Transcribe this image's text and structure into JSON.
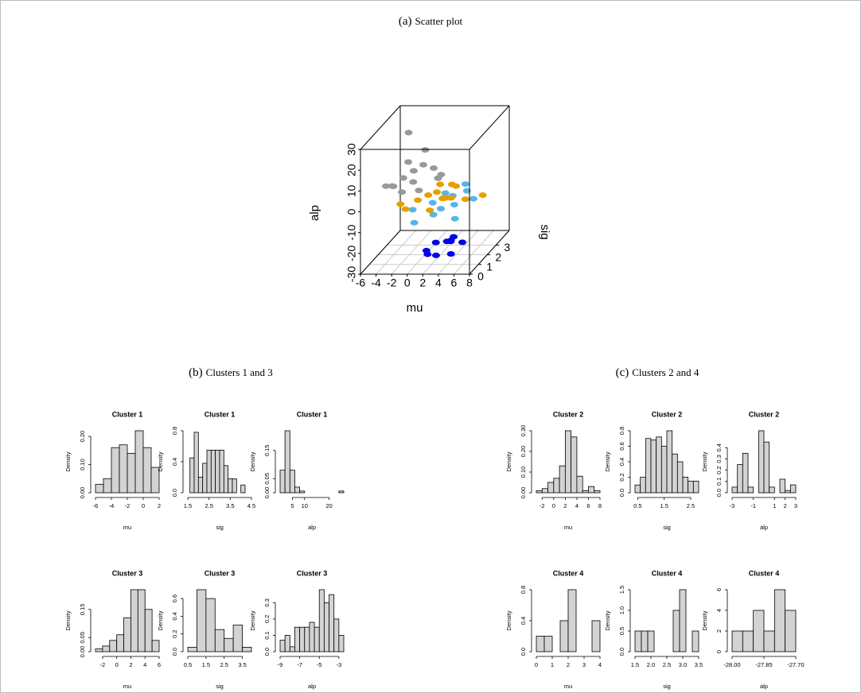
{
  "captions": [
    {
      "label": "(a)",
      "text": "Scatter plot"
    },
    {
      "label": "(b)",
      "text": "Clusters 1 and 3"
    },
    {
      "label": "(c)",
      "text": "Clusters 2 and 4"
    }
  ],
  "chart_data": [
    {
      "type": "scatter3d",
      "xlabel": "mu",
      "ylabel": "sig",
      "zlabel": "alp",
      "xlim": [
        -6,
        8
      ],
      "ylim": [
        0,
        4.5
      ],
      "zlim": [
        -30,
        30
      ],
      "xticks": [
        -6,
        -4,
        -2,
        0,
        2,
        4,
        6,
        8
      ],
      "yticks": [
        0,
        1,
        2,
        3
      ],
      "zticks": [
        -30,
        -20,
        -10,
        0,
        10,
        20,
        30
      ],
      "grid": true,
      "series": [
        {
          "color": "#999999",
          "x": [
            -5,
            -4,
            -3,
            -2,
            -1,
            0,
            -3.5,
            -2.5,
            -1.5,
            1,
            -4.5,
            0.5,
            -2,
            -1,
            -3
          ],
          "y": [
            2,
            1.8,
            2.2,
            2.5,
            2.7,
            3,
            3.2,
            1.6,
            2,
            2.6,
            2.4,
            3.4,
            3.8,
            2.2,
            2.8
          ],
          "z": [
            3,
            4,
            6,
            8,
            10,
            7,
            9,
            2,
            5,
            4,
            1,
            2,
            12,
            0,
            25
          ]
        },
        {
          "color": "#56b4e9",
          "x": [
            -1,
            1,
            2,
            3,
            4,
            5,
            3.5,
            0,
            2.5,
            6,
            1.5,
            4.5
          ],
          "y": [
            1.5,
            2,
            1.2,
            2.5,
            1.8,
            1,
            3.5,
            0.8,
            1.6,
            2.2,
            3,
            2.8
          ],
          "z": [
            -6,
            -5,
            -7,
            -4,
            -5,
            -8,
            -3,
            -9,
            -6,
            -4,
            -5,
            -3
          ]
        },
        {
          "color": "#e69f00",
          "x": [
            -2,
            0,
            1,
            2,
            3,
            2.5,
            3.5,
            4,
            2,
            1.5,
            3,
            6,
            8,
            -1,
            4.5,
            2.8
          ],
          "y": [
            1,
            1.2,
            1.5,
            1.6,
            1.4,
            1.8,
            1.2,
            2,
            0.8,
            2.4,
            1.7,
            1.3,
            1.5,
            0.7,
            1,
            2.6
          ],
          "z": [
            -1,
            0,
            1,
            2,
            0,
            -2,
            1,
            3,
            -3,
            2,
            -1,
            0,
            1,
            -2,
            2,
            1
          ]
        },
        {
          "color": "#0000ee",
          "x": [
            0.2,
            0.8,
            1.8,
            2.2,
            2.3,
            3.8,
            2.1,
            0.5,
            2,
            3.9
          ],
          "y": [
            2,
            1.6,
            2.9,
            3,
            2.9,
            1.6,
            3.4,
            2.8,
            1.5,
            2.8
          ],
          "z": [
            -28,
            -27.9,
            -27.8,
            -27.75,
            -27.8,
            -27.72,
            -27.9,
            -27.85,
            -27.95,
            -27.75
          ]
        }
      ]
    },
    {
      "type": "histogram",
      "title": "Cluster 1",
      "xlabel": "mu",
      "ylabel": "Density",
      "color": "#d3d3d3",
      "bins": [
        -6,
        -5,
        -4,
        -3,
        -2,
        -1,
        0,
        1,
        2
      ],
      "values": [
        0.03,
        0.05,
        0.16,
        0.17,
        0.14,
        0.22,
        0.16,
        0.09
      ],
      "xlim": [
        -6,
        2
      ],
      "ylim": [
        0,
        0.22
      ],
      "xticks": [
        -6,
        -4,
        -2,
        0,
        2
      ],
      "yticks": [
        {
          "value": 0,
          "label": "0.00"
        },
        {
          "value": 0.1,
          "label": "0.10"
        },
        {
          "value": 0.2,
          "label": "0.20"
        }
      ]
    },
    {
      "type": "histogram",
      "title": "Cluster 1",
      "xlabel": "sig",
      "ylabel": "Density",
      "color": "#d3d3d3",
      "bins": [
        1.6,
        1.8,
        2.0,
        2.2,
        2.4,
        2.6,
        2.8,
        3.0,
        3.2,
        3.4,
        3.6,
        3.8,
        4.0,
        4.2,
        4.4
      ],
      "values": [
        0.45,
        0.78,
        0.2,
        0.38,
        0.55,
        0.55,
        0.55,
        0.55,
        0.35,
        0.18,
        0.18,
        0,
        0.1,
        0
      ],
      "xlim": [
        1.5,
        4.5
      ],
      "ylim": [
        0,
        0.8
      ],
      "xticks": [
        1.5,
        2.5,
        3.5,
        4.5
      ],
      "yticks": [
        {
          "value": 0,
          "label": "0.0"
        },
        0.4,
        0.8
      ]
    },
    {
      "type": "histogram",
      "title": "Cluster 1",
      "xlabel": "alp",
      "ylabel": "Density",
      "color": "#d3d3d3",
      "bins": [
        0,
        2,
        4,
        6,
        8,
        10,
        12,
        14,
        16,
        18,
        20,
        22,
        24,
        26
      ],
      "values": [
        0.08,
        0.22,
        0.08,
        0.02,
        0.006,
        0,
        0,
        0,
        0,
        0,
        0,
        0,
        0.006
      ],
      "xlim": [
        0,
        26
      ],
      "ylim": [
        0,
        0.22
      ],
      "xticks": [
        5,
        10,
        20
      ],
      "yticks": [
        {
          "value": 0,
          "label": "0.00"
        },
        0.05,
        0.15
      ]
    },
    {
      "type": "histogram",
      "title": "Cluster 3",
      "xlabel": "mu",
      "ylabel": "Density",
      "color": "#d3d3d3",
      "bins": [
        -3,
        -2,
        -1,
        0,
        1,
        2,
        3,
        4,
        5,
        6
      ],
      "values": [
        0.01,
        0.02,
        0.04,
        0.06,
        0.12,
        0.22,
        0.22,
        0.15,
        0.04
      ],
      "xlim": [
        -3,
        6
      ],
      "ylim": [
        0,
        0.22
      ],
      "xticks": [
        -2,
        0,
        2,
        4,
        6
      ],
      "yticks": [
        {
          "value": 0,
          "label": "0.00"
        },
        0.05,
        0.15
      ]
    },
    {
      "type": "histogram",
      "title": "Cluster 3",
      "xlabel": "sig",
      "ylabel": "Density",
      "color": "#d3d3d3",
      "bins": [
        0.5,
        1,
        1.5,
        2,
        2.5,
        3,
        3.5,
        4
      ],
      "values": [
        0.05,
        0.7,
        0.6,
        0.25,
        0.15,
        0.3,
        0.05
      ],
      "xlim": [
        0.5,
        4
      ],
      "ylim": [
        0,
        0.7
      ],
      "xticks": [
        0.5,
        1.5,
        2.5,
        3.5
      ],
      "yticks": [
        {
          "value": 0,
          "label": "0.0"
        },
        0.2,
        0.4,
        0.6
      ]
    },
    {
      "type": "histogram",
      "title": "Cluster 3",
      "xlabel": "alp",
      "ylabel": "Density",
      "color": "#d3d3d3",
      "bins": [
        -9,
        -8.5,
        -8,
        -7.5,
        -7,
        -6.5,
        -6,
        -5.5,
        -5,
        -4.5,
        -4,
        -3.5,
        -3,
        -2.5
      ],
      "values": [
        0.07,
        0.1,
        0.03,
        0.15,
        0.15,
        0.15,
        0.18,
        0.15,
        0.38,
        0.3,
        0.35,
        0.2,
        0.1
      ],
      "xlim": [
        -9,
        -2.5
      ],
      "ylim": [
        0,
        0.38
      ],
      "xticks": [
        -9,
        -7,
        -5,
        -3
      ],
      "yticks": [
        {
          "value": 0,
          "label": "0.0"
        },
        0.1,
        0.2,
        0.3
      ]
    },
    {
      "type": "histogram",
      "title": "Cluster 2",
      "xlabel": "mu",
      "ylabel": "Density",
      "color": "#d3d3d3",
      "bins": [
        -3,
        -2,
        -1,
        0,
        1,
        2,
        3,
        4,
        5,
        6,
        7,
        8
      ],
      "values": [
        0.01,
        0.02,
        0.05,
        0.07,
        0.13,
        0.3,
        0.27,
        0.08,
        0.01,
        0.03,
        0.01
      ],
      "xlim": [
        -3,
        8
      ],
      "ylim": [
        0,
        0.3
      ],
      "xticks": [
        -2,
        0,
        2,
        4,
        6,
        8
      ],
      "yticks": [
        {
          "value": 0,
          "label": "0.00"
        },
        {
          "value": 0.1,
          "label": "0.10"
        },
        {
          "value": 0.2,
          "label": "0.20"
        },
        {
          "value": 0.3,
          "label": "0.30"
        }
      ]
    },
    {
      "type": "histogram",
      "title": "Cluster 2",
      "xlabel": "sig",
      "ylabel": "Density",
      "color": "#d3d3d3",
      "bins": [
        0.4,
        0.6,
        0.8,
        1.0,
        1.2,
        1.4,
        1.6,
        1.8,
        2.0,
        2.2,
        2.4,
        2.6,
        2.8
      ],
      "values": [
        0.1,
        0.2,
        0.7,
        0.68,
        0.72,
        0.6,
        0.8,
        0.5,
        0.4,
        0.2,
        0.15,
        0.15
      ],
      "xlim": [
        0.4,
        2.8
      ],
      "ylim": [
        0,
        0.8
      ],
      "xticks": [
        0.5,
        1.5,
        2.5
      ],
      "yticks": [
        {
          "value": 0,
          "label": "0.0"
        },
        0.2,
        0.4,
        0.6,
        0.8
      ]
    },
    {
      "type": "histogram",
      "title": "Cluster 2",
      "xlabel": "alp",
      "ylabel": "Density",
      "color": "#d3d3d3",
      "bins": [
        -3,
        -2.5,
        -2,
        -1.5,
        -1,
        -0.5,
        0,
        0.5,
        1,
        1.5,
        2,
        2.5,
        3
      ],
      "values": [
        0.05,
        0.25,
        0.35,
        0.05,
        0,
        0.55,
        0.45,
        0.05,
        0,
        0.12,
        0.02,
        0.07
      ],
      "xlim": [
        -3,
        3
      ],
      "ylim": [
        0,
        0.55
      ],
      "xticks": [
        -3,
        -1,
        1,
        2,
        3
      ],
      "yticks": [
        {
          "value": 0,
          "label": "0.0"
        },
        0.1,
        0.2,
        0.3,
        0.4
      ]
    },
    {
      "type": "histogram",
      "title": "Cluster 4",
      "xlabel": "mu",
      "ylabel": "Density",
      "color": "#d3d3d3",
      "bins": [
        0,
        0.5,
        1,
        1.5,
        2,
        2.5,
        3,
        3.5,
        4
      ],
      "values": [
        0.2,
        0.2,
        0,
        0.4,
        0.8,
        0,
        0,
        0.4
      ],
      "xlim": [
        0,
        4
      ],
      "ylim": [
        0,
        0.8
      ],
      "xticks": [
        0,
        1,
        2,
        3,
        4
      ],
      "yticks": [
        {
          "value": 0,
          "label": "0.0"
        },
        0.4,
        0.8
      ]
    },
    {
      "type": "histogram",
      "title": "Cluster 4",
      "xlabel": "sig",
      "ylabel": "Density",
      "color": "#d3d3d3",
      "bins": [
        1.5,
        1.7,
        1.9,
        2.1,
        2.3,
        2.5,
        2.7,
        2.9,
        3.1,
        3.3,
        3.5
      ],
      "values": [
        0.5,
        0.5,
        0.5,
        0,
        0,
        0,
        1.0,
        1.5,
        0,
        0.5
      ],
      "xlim": [
        1.5,
        3.5
      ],
      "ylim": [
        0,
        1.5
      ],
      "xticks": [
        1.5,
        {
          "value": 2,
          "label": "2.0"
        },
        2.5,
        {
          "value": 3,
          "label": "3.0"
        },
        3.5
      ],
      "yticks": [
        {
          "value": 0,
          "label": "0.0"
        },
        0.5,
        {
          "value": 1,
          "label": "1.0"
        },
        1.5
      ]
    },
    {
      "type": "histogram",
      "title": "Cluster 4",
      "xlabel": "alp",
      "ylabel": "Density",
      "color": "#d3d3d3",
      "bins": [
        -28,
        -27.95,
        -27.9,
        -27.85,
        -27.8,
        -27.75,
        -27.7
      ],
      "values": [
        2,
        2,
        4,
        2,
        6,
        4
      ],
      "xlim": [
        -28,
        -27.7
      ],
      "ylim": [
        0,
        6
      ],
      "xticks": [
        {
          "value": -28,
          "label": "-28.00"
        },
        -27.85,
        {
          "value": -27.7,
          "label": "-27.70"
        }
      ],
      "yticks": [
        0,
        2,
        4,
        6
      ]
    }
  ]
}
